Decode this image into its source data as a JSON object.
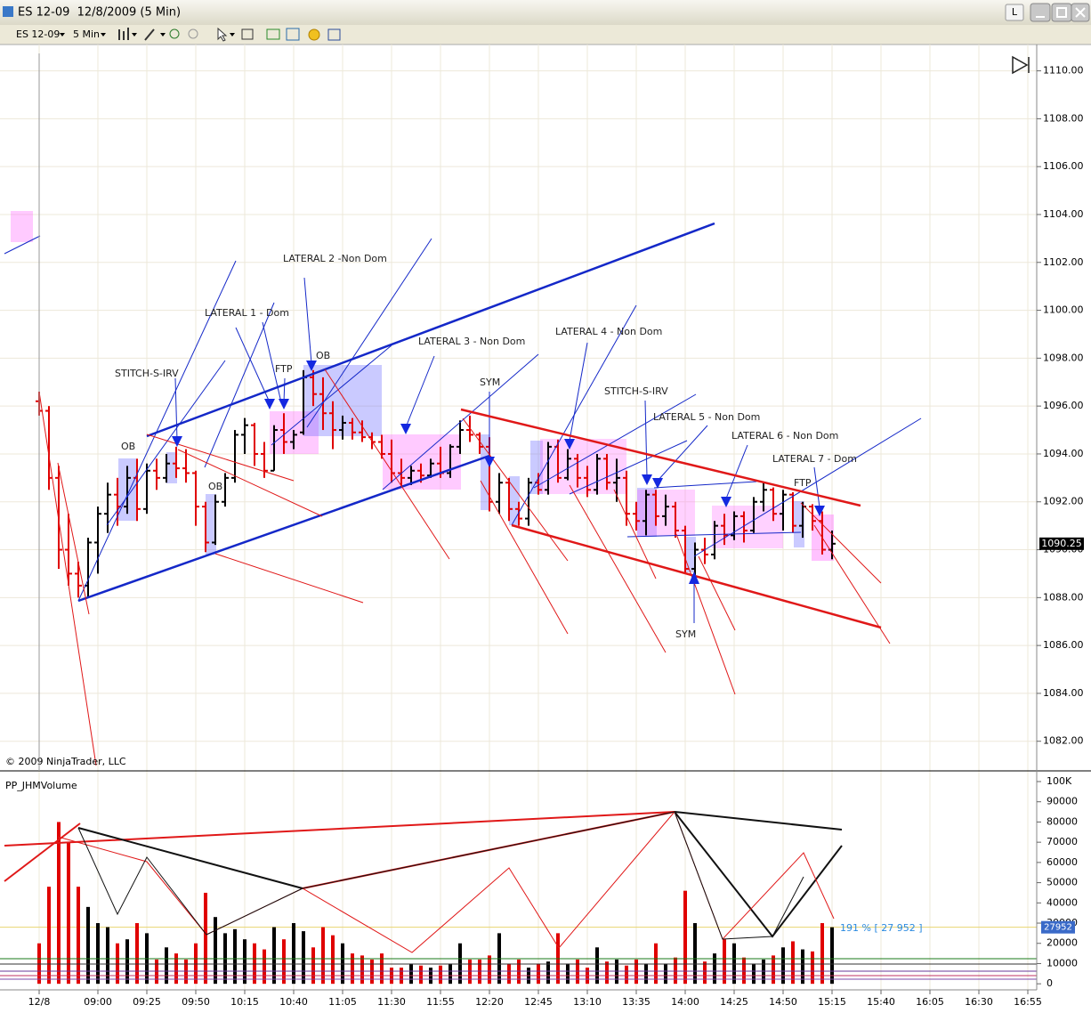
{
  "window": {
    "title": "ES 12-09  12/8/2009 (5 Min)",
    "button": "L"
  },
  "toolbar": {
    "instrument": "ES 12-09",
    "interval": "5 Min"
  },
  "chart_data": [
    {
      "type": "ohlc",
      "copyright": "© 2009 NinjaTrader, LLC",
      "annotations": [
        "STITCH-S-IRV",
        "OB",
        "OB",
        "LATERAL 1 - Dom",
        "FTP",
        "LATERAL 2 -Non Dom",
        "OB",
        "LATERAL 3 - Non Dom",
        "SYM",
        "LATERAL 4 - Non Dom",
        "STITCH-S-IRV",
        "LATERAL 5 - Non Dom",
        "LATERAL 6 - Non Dom",
        "LATERAL 7 - Dom",
        "FTP",
        "SYM"
      ],
      "up_color": "#000000",
      "down_color": "#e00000",
      "last_price": 1090.25,
      "ylim": [
        1080.8,
        1111.1
      ],
      "yticks": [
        {
          "value": 1082,
          "label": "1082.00"
        },
        {
          "value": 1084,
          "label": "1084.00"
        },
        {
          "value": 1086,
          "label": "1086.00"
        },
        {
          "value": 1088,
          "label": "1088.00"
        },
        {
          "value": 1090,
          "label": "1090.00"
        },
        {
          "value": 1092,
          "label": "1092.00"
        },
        {
          "value": 1094,
          "label": "1094.00"
        },
        {
          "value": 1096,
          "label": "1096.00"
        },
        {
          "value": 1098,
          "label": "1098.00"
        },
        {
          "value": 1100,
          "label": "1100.00"
        },
        {
          "value": 1102,
          "label": "1102.00"
        },
        {
          "value": 1104,
          "label": "1104.00"
        },
        {
          "value": 1106,
          "label": "1106.00"
        },
        {
          "value": 1108,
          "label": "1108.00"
        },
        {
          "value": 1110,
          "label": "1110.00"
        }
      ],
      "grid": true,
      "categories": [
        "12/8",
        null,
        null,
        null,
        null,
        null,
        "09:00",
        null,
        null,
        null,
        null,
        "09:25",
        null,
        null,
        null,
        null,
        "09:50",
        null,
        null,
        null,
        null,
        "10:15",
        null,
        null,
        null,
        null,
        "10:40",
        null,
        null,
        null,
        null,
        "11:05",
        null,
        null,
        null,
        null,
        "11:30",
        null,
        null,
        null,
        null,
        "11:55",
        null,
        null,
        null,
        null,
        "12:20",
        null,
        null,
        null,
        null,
        "12:45",
        null,
        null,
        null,
        null,
        "13:10",
        null,
        null,
        null,
        null,
        "13:35",
        null,
        null,
        null,
        null,
        "14:00",
        null,
        null,
        null,
        null,
        "14:25",
        null,
        null,
        null,
        null,
        "14:50",
        null,
        null,
        null,
        null,
        "15:15",
        null,
        null,
        null,
        null,
        "15:40",
        null,
        null,
        null,
        null,
        "16:05",
        null,
        null,
        null,
        null,
        "16:30",
        null,
        null,
        null,
        null,
        "16:55"
      ],
      "open": [
        1096.2,
        1095.8,
        1093.0,
        1090.0,
        1089.0,
        1088.5,
        1090.3,
        1091.5,
        1092.3,
        1091.8,
        1093.0,
        1091.7,
        1093.3,
        1093.0,
        1093.6,
        1093.4,
        1093.2,
        1091.8,
        1090.3,
        1092.0,
        1093.0,
        1094.8,
        1095.2,
        1094.0,
        1093.3,
        1095.0,
        1094.5,
        1094.9,
        1097.2,
        1096.5,
        1095.7,
        1095.0,
        1095.3,
        1094.9,
        1094.7,
        1094.5,
        1094.0,
        1093.2,
        1093.0,
        1093.3,
        1093.1,
        1093.6,
        1093.2,
        1094.3,
        1095.0,
        1094.8,
        1094.3,
        1092.0,
        1092.8,
        1091.7,
        1091.3,
        1092.8,
        1092.5,
        1094.3,
        1093.0,
        1093.8,
        1093.0,
        1092.5,
        1093.8,
        1092.8,
        1093.0,
        1091.5,
        1091.2,
        1092.3,
        1091.4,
        1091.8,
        1090.8,
        1089.2,
        1090.0,
        1089.8,
        1091.0,
        1090.6,
        1091.4,
        1090.8,
        1092.0,
        1092.5,
        1091.5,
        1092.3,
        1091.0,
        1091.8,
        1091.2,
        1090.0,
        null,
        null,
        null,
        null,
        null,
        null,
        null,
        null,
        null,
        null,
        null,
        null,
        null,
        null,
        null,
        null,
        null,
        null,
        null,
        null
      ],
      "high": [
        1096.6,
        1096.0,
        1093.5,
        1091.5,
        1089.5,
        1090.5,
        1091.8,
        1092.8,
        1093.0,
        1093.5,
        1093.8,
        1093.6,
        1093.8,
        1094.0,
        1094.3,
        1094.2,
        1093.3,
        1092.0,
        1092.3,
        1093.2,
        1095.0,
        1095.5,
        1095.3,
        1094.5,
        1095.2,
        1095.7,
        1095.0,
        1097.5,
        1097.5,
        1097.2,
        1096.2,
        1095.6,
        1095.5,
        1095.4,
        1094.9,
        1094.8,
        1094.6,
        1093.8,
        1093.5,
        1093.6,
        1093.8,
        1094.3,
        1094.4,
        1095.4,
        1095.6,
        1094.9,
        1094.7,
        1093.2,
        1093.0,
        1092.0,
        1093.0,
        1093.2,
        1094.5,
        1094.6,
        1094.2,
        1094.0,
        1093.5,
        1094.0,
        1094.0,
        1093.8,
        1093.3,
        1092.0,
        1092.5,
        1092.5,
        1092.3,
        1092.0,
        1091.0,
        1090.3,
        1090.5,
        1091.2,
        1091.5,
        1091.6,
        1091.6,
        1092.2,
        1092.8,
        1092.6,
        1092.5,
        1092.4,
        1092.0,
        1091.9,
        1091.6,
        1090.8,
        null,
        null,
        null,
        null,
        null,
        null,
        null,
        null,
        null,
        null,
        null,
        null,
        null,
        null,
        null,
        null,
        null,
        null,
        null,
        null
      ],
      "low": [
        1095.6,
        1092.5,
        1089.2,
        1088.5,
        1088.0,
        1088.0,
        1089.0,
        1090.7,
        1091.0,
        1091.5,
        1091.2,
        1091.5,
        1092.5,
        1092.8,
        1093.0,
        1092.8,
        1091.0,
        1089.9,
        1090.2,
        1091.8,
        1092.8,
        1094.0,
        1093.5,
        1093.0,
        1093.3,
        1094.0,
        1094.2,
        1094.8,
        1096.0,
        1095.0,
        1094.2,
        1094.6,
        1094.6,
        1094.5,
        1094.2,
        1093.8,
        1092.8,
        1092.6,
        1092.7,
        1092.8,
        1093.0,
        1093.0,
        1093.0,
        1094.0,
        1094.5,
        1094.0,
        1091.6,
        1091.5,
        1091.2,
        1091.0,
        1091.0,
        1092.3,
        1092.3,
        1092.8,
        1092.9,
        1092.6,
        1092.2,
        1092.3,
        1092.5,
        1092.0,
        1091.0,
        1090.8,
        1090.6,
        1091.0,
        1091.0,
        1090.5,
        1089.0,
        1088.6,
        1089.4,
        1089.6,
        1090.2,
        1090.4,
        1090.3,
        1090.7,
        1091.6,
        1091.2,
        1090.8,
        1090.7,
        1090.5,
        1090.8,
        1089.8,
        1089.6,
        null,
        null,
        null,
        null,
        null,
        null,
        null,
        null,
        null,
        null,
        null,
        null,
        null,
        null,
        null,
        null,
        null,
        null,
        null,
        null
      ],
      "close": [
        1095.8,
        1093.0,
        1090.0,
        1089.0,
        1088.5,
        1090.3,
        1091.5,
        1092.3,
        1091.8,
        1093.0,
        1091.7,
        1093.3,
        1093.0,
        1093.6,
        1093.4,
        1093.2,
        1091.8,
        1090.3,
        1092.0,
        1093.0,
        1094.8,
        1095.2,
        1094.0,
        1093.3,
        1095.0,
        1094.5,
        1094.8,
        1097.2,
        1096.5,
        1095.7,
        1095.0,
        1095.3,
        1094.9,
        1094.7,
        1094.5,
        1094.0,
        1093.2,
        1093.0,
        1093.3,
        1093.1,
        1093.6,
        1093.2,
        1094.3,
        1095.0,
        1094.8,
        1094.3,
        1092.0,
        1092.8,
        1091.7,
        1091.3,
        1092.8,
        1092.5,
        1094.3,
        1093.0,
        1093.8,
        1093.0,
        1092.5,
        1093.8,
        1092.8,
        1093.0,
        1091.5,
        1091.2,
        1092.3,
        1091.4,
        1091.8,
        1090.8,
        1089.2,
        1090.0,
        1089.8,
        1091.0,
        1090.6,
        1091.4,
        1090.8,
        1092.0,
        1092.5,
        1091.5,
        1092.3,
        1091.0,
        1091.8,
        1091.2,
        1090.0,
        1090.25,
        null,
        null,
        null,
        null,
        null,
        null,
        null,
        null,
        null,
        null,
        null,
        null,
        null,
        null,
        null,
        null,
        null,
        null,
        null,
        null
      ]
    },
    {
      "type": "bar",
      "title": "PP_JHMVolume",
      "annotation": "191 % [ 27 952 ]",
      "last_value": 27952,
      "ylim": [
        -3000,
        104400
      ],
      "yticks": [
        0,
        10000,
        20000,
        30000,
        40000,
        50000,
        60000,
        70000,
        80000,
        90000,
        {
          "value": 100000,
          "label": "100K"
        }
      ],
      "values": [
        20000,
        48000,
        80000,
        70000,
        48000,
        38000,
        30000,
        28000,
        20000,
        22000,
        30000,
        25000,
        12000,
        18000,
        15000,
        12000,
        20000,
        45000,
        33000,
        25000,
        27000,
        22000,
        20000,
        17000,
        28000,
        22000,
        30000,
        26000,
        18000,
        28000,
        24000,
        20000,
        15000,
        14000,
        12000,
        15000,
        8000,
        8000,
        10000,
        9000,
        8000,
        9000,
        10000,
        20000,
        12000,
        12000,
        14000,
        25000,
        10000,
        12000,
        8000,
        10000,
        11000,
        25000,
        10000,
        12000,
        8000,
        18000,
        11000,
        12000,
        9000,
        12000,
        10000,
        20000,
        10000,
        13000,
        46000,
        30000,
        11000,
        15000,
        22000,
        20000,
        13000,
        10000,
        12000,
        14000,
        18000,
        21000,
        17000,
        16000,
        30000,
        27952,
        null,
        null,
        null,
        null,
        null,
        null,
        null,
        null,
        null,
        null,
        null,
        null,
        null,
        null,
        null,
        null,
        null,
        null,
        null,
        null
      ]
    }
  ]
}
